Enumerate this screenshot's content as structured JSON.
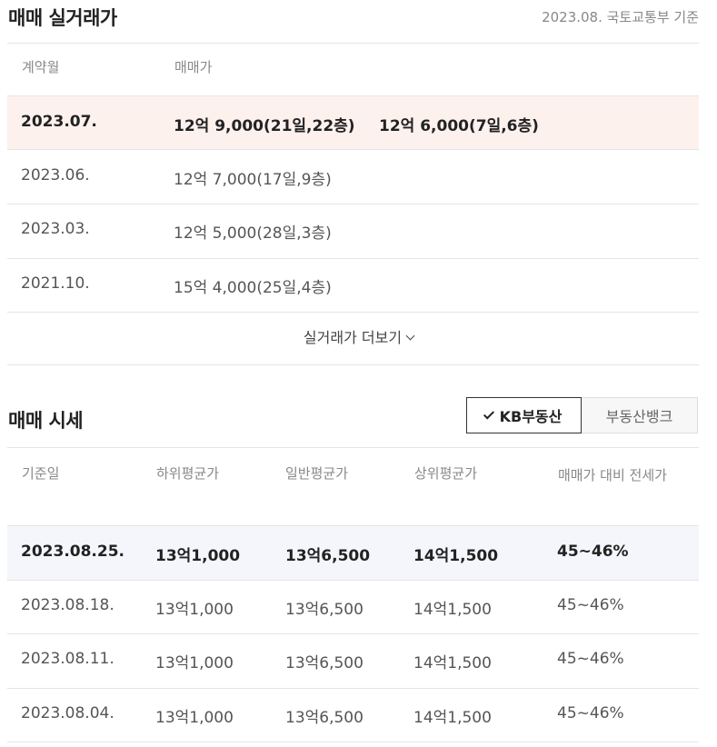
{
  "sale": {
    "title": "매매 실거래가",
    "source": "2023.08. 국토교통부 기준",
    "headers": {
      "month": "계약월",
      "price": "매매가"
    },
    "rows": [
      {
        "month": "2023.07.",
        "deals": [
          "12억 9,000(21일,22층)",
          "12억 6,000(7일,6층)"
        ]
      },
      {
        "month": "2023.06.",
        "deals": [
          "12억 7,000(17일,9층)",
          ""
        ]
      },
      {
        "month": "2023.03.",
        "deals": [
          "12억 5,000(28일,3층)",
          ""
        ]
      },
      {
        "month": "2021.10.",
        "deals": [
          "15억 4,000(25일,4층)",
          ""
        ]
      }
    ],
    "more_label": "실거래가 더보기"
  },
  "market": {
    "title": "매매 시세",
    "tabs": {
      "kb": "KB부동산",
      "bank": "부동산뱅크"
    },
    "headers": {
      "date": "기준일",
      "low": "하위평균가",
      "avg": "일반평균가",
      "high": "상위평균가",
      "ratio": "매매가 대비 전세가"
    },
    "rows": [
      {
        "date": "2023.08.25.",
        "low": "13억1,000",
        "avg": "13억6,500",
        "high": "14억1,500",
        "ratio": "45~46%"
      },
      {
        "date": "2023.08.18.",
        "low": "13억1,000",
        "avg": "13억6,500",
        "high": "14억1,500",
        "ratio": "45~46%"
      },
      {
        "date": "2023.08.11.",
        "low": "13억1,000",
        "avg": "13억6,500",
        "high": "14억1,500",
        "ratio": "45~46%"
      },
      {
        "date": "2023.08.04.",
        "low": "13억1,000",
        "avg": "13억6,500",
        "high": "14억1,500",
        "ratio": "45~46%"
      }
    ]
  }
}
